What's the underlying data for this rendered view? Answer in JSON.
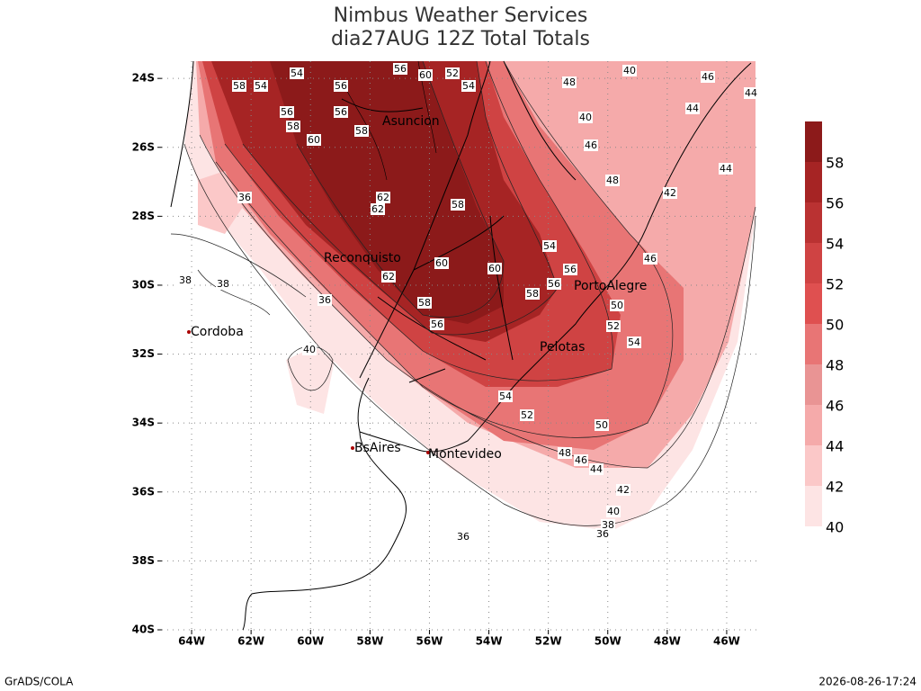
{
  "header": {
    "title": "Nimbus Weather Services",
    "subtitle": "dia27AUG 12Z Total Totals"
  },
  "map": {
    "xlim": [
      -65,
      -45
    ],
    "ylim": [
      -40,
      -23.5
    ],
    "xticks": [
      {
        "value": -64,
        "label": "64W"
      },
      {
        "value": -62,
        "label": "62W"
      },
      {
        "value": -60,
        "label": "60W"
      },
      {
        "value": -58,
        "label": "58W"
      },
      {
        "value": -56,
        "label": "56W"
      },
      {
        "value": -54,
        "label": "54W"
      },
      {
        "value": -52,
        "label": "52W"
      },
      {
        "value": -50,
        "label": "50W"
      },
      {
        "value": -48,
        "label": "48W"
      },
      {
        "value": -46,
        "label": "46W"
      }
    ],
    "yticks": [
      {
        "value": -24,
        "label": "24S"
      },
      {
        "value": -26,
        "label": "26S"
      },
      {
        "value": -28,
        "label": "28S"
      },
      {
        "value": -30,
        "label": "30S"
      },
      {
        "value": -32,
        "label": "32S"
      },
      {
        "value": -34,
        "label": "34S"
      },
      {
        "value": -36,
        "label": "36S"
      },
      {
        "value": -38,
        "label": "38S"
      },
      {
        "value": -40,
        "label": "40S"
      }
    ],
    "grid": true,
    "cities": [
      "Asuncion",
      "Reconquisto",
      "PortoAlegre",
      "Pelotas",
      "Cordoba",
      "BsAires",
      "Montevideo"
    ],
    "contour_labels": [
      54,
      56,
      60,
      52,
      54,
      58,
      54,
      56,
      56,
      58,
      60,
      56,
      58,
      62,
      62,
      58,
      60,
      60,
      62,
      58,
      56,
      54,
      56,
      58,
      56,
      50,
      52,
      54,
      54,
      52,
      50,
      48,
      46,
      44,
      42,
      40,
      38,
      36,
      48,
      46,
      44,
      42,
      40,
      40,
      36,
      38,
      38,
      40,
      36,
      36,
      46,
      44,
      46,
      48,
      44
    ]
  },
  "colorbar": {
    "levels": [
      40,
      42,
      44,
      46,
      48,
      50,
      52,
      54,
      56,
      58
    ],
    "colors": [
      "#fde4e4",
      "#fbc8c8",
      "#f5aaaa",
      "#e99494",
      "#e87575",
      "#df5050",
      "#cf4343",
      "#ba3232",
      "#a62424",
      "#8c1a1a"
    ]
  },
  "footer": {
    "left": "GrADS/COLA",
    "right": "2026-08-26-17:24"
  }
}
